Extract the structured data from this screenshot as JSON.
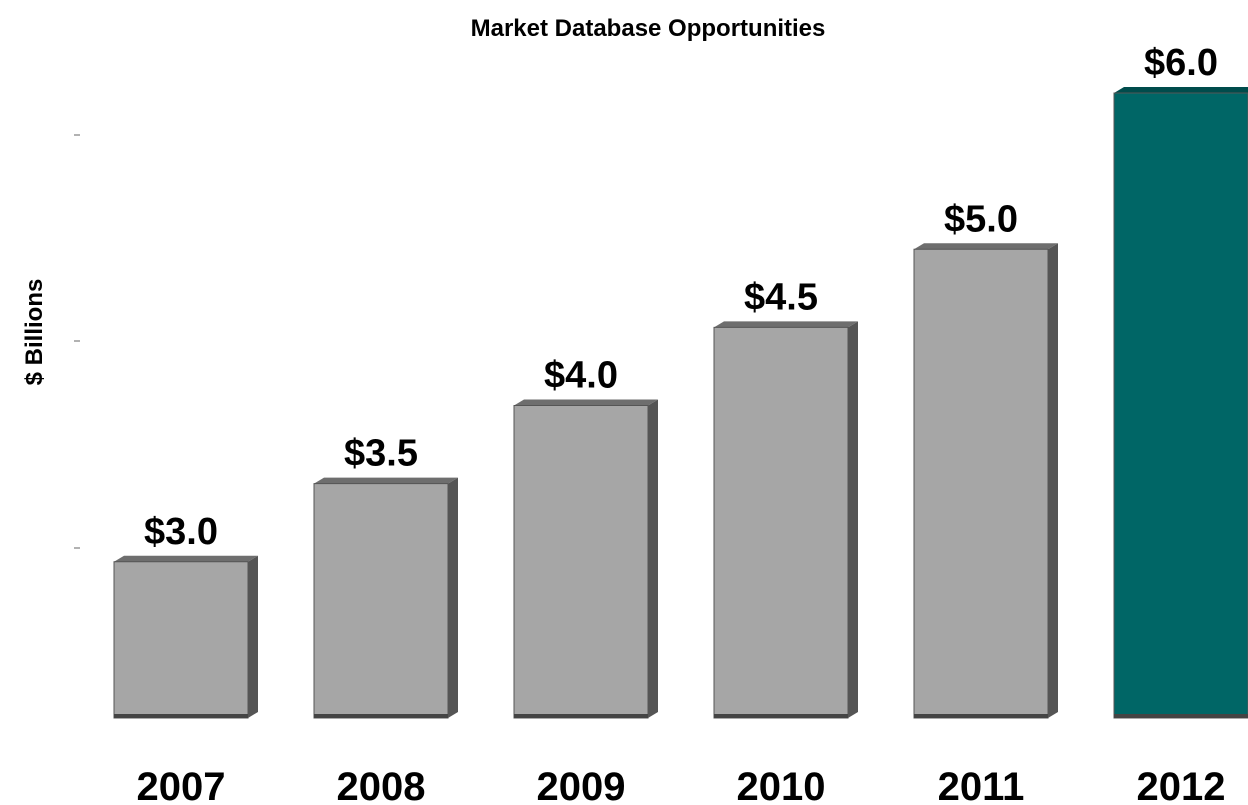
{
  "chart_data": {
    "type": "bar",
    "title": "Market Database Opportunities",
    "y_label": "$ Billions",
    "categories": [
      "2007",
      "2008",
      "2009",
      "2010",
      "2011",
      "2012"
    ],
    "values": [
      3.0,
      3.5,
      4.0,
      4.5,
      5.0,
      6.0
    ],
    "value_labels": [
      "$3.0",
      "$3.5",
      "$4.0",
      "$4.5",
      "$5.0",
      "$6.0"
    ],
    "colors": [
      "#a6a6a6",
      "#a6a6a6",
      "#a6a6a6",
      "#a6a6a6",
      "#a6a6a6",
      "#006666"
    ],
    "ylim": [
      2,
      6
    ]
  }
}
